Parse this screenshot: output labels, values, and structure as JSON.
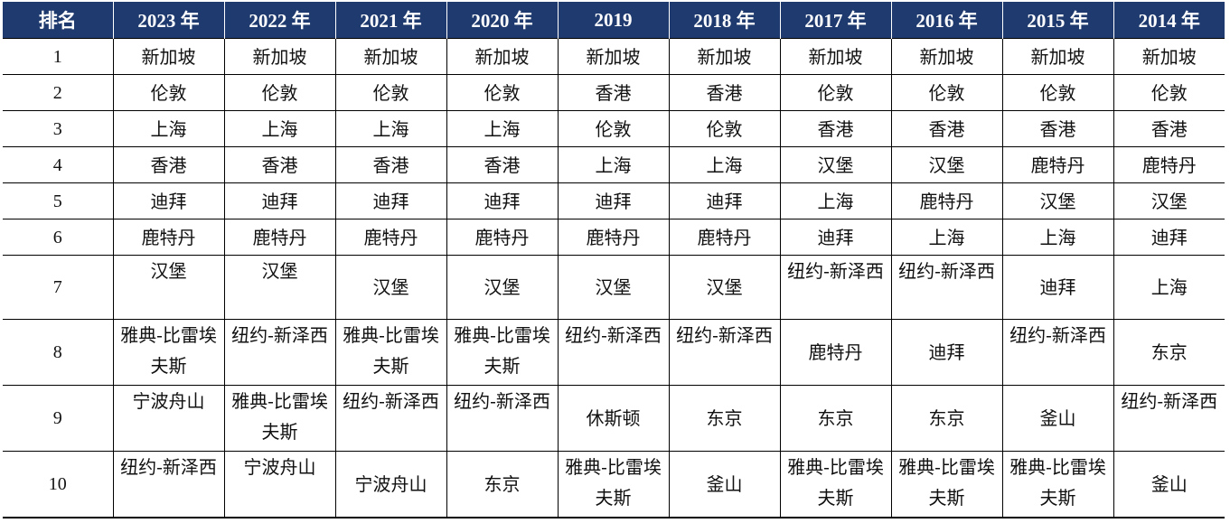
{
  "table": {
    "headers": [
      "排名",
      "2023 年",
      "2022 年",
      "2021 年",
      "2020 年",
      "2019",
      "2018 年",
      "2017 年",
      "2016 年",
      "2015 年",
      "2014 年"
    ],
    "rows": [
      [
        "1",
        "新加坡",
        "新加坡",
        "新加坡",
        "新加坡",
        "新加坡",
        "新加坡",
        "新加坡",
        "新加坡",
        "新加坡",
        "新加坡"
      ],
      [
        "2",
        "伦敦",
        "伦敦",
        "伦敦",
        "伦敦",
        "香港",
        "香港",
        "伦敦",
        "伦敦",
        "伦敦",
        "伦敦"
      ],
      [
        "3",
        "上海",
        "上海",
        "上海",
        "上海",
        "伦敦",
        "伦敦",
        "香港",
        "香港",
        "香港",
        "香港"
      ],
      [
        "4",
        "香港",
        "香港",
        "香港",
        "香港",
        "上海",
        "上海",
        "汉堡",
        "汉堡",
        "鹿特丹",
        "鹿特丹"
      ],
      [
        "5",
        "迪拜",
        "迪拜",
        "迪拜",
        "迪拜",
        "迪拜",
        "迪拜",
        "上海",
        "鹿特丹",
        "汉堡",
        "汉堡"
      ],
      [
        "6",
        "鹿特丹",
        "鹿特丹",
        "鹿特丹",
        "鹿特丹",
        "鹿特丹",
        "鹿特丹",
        "迪拜",
        "上海",
        "上海",
        "迪拜"
      ],
      [
        "7",
        "汉堡",
        "汉堡",
        "汉堡",
        "汉堡",
        "汉堡",
        "汉堡",
        "纽约-新泽西",
        "纽约-新泽西",
        "迪拜",
        "上海"
      ],
      [
        "8",
        "雅典-比雷埃夫斯",
        "纽约-新泽西",
        "雅典-比雷埃夫斯",
        "雅典-比雷埃夫斯",
        "纽约-新泽西",
        "纽约-新泽西",
        "鹿特丹",
        "迪拜",
        "纽约-新泽西",
        "东京"
      ],
      [
        "9",
        "宁波舟山",
        "雅典-比雷埃夫斯",
        "纽约-新泽西",
        "纽约-新泽西",
        "休斯顿",
        "东京",
        "东京",
        "东京",
        "釜山",
        "纽约-新泽西"
      ],
      [
        "10",
        "纽约-新泽西",
        "宁波舟山",
        "宁波舟山",
        "东京",
        "雅典-比雷埃夫斯",
        "釜山",
        "雅典-比雷埃夫斯",
        "雅典-比雷埃夫斯",
        "雅典-比雷埃夫斯",
        "釜山"
      ]
    ]
  }
}
